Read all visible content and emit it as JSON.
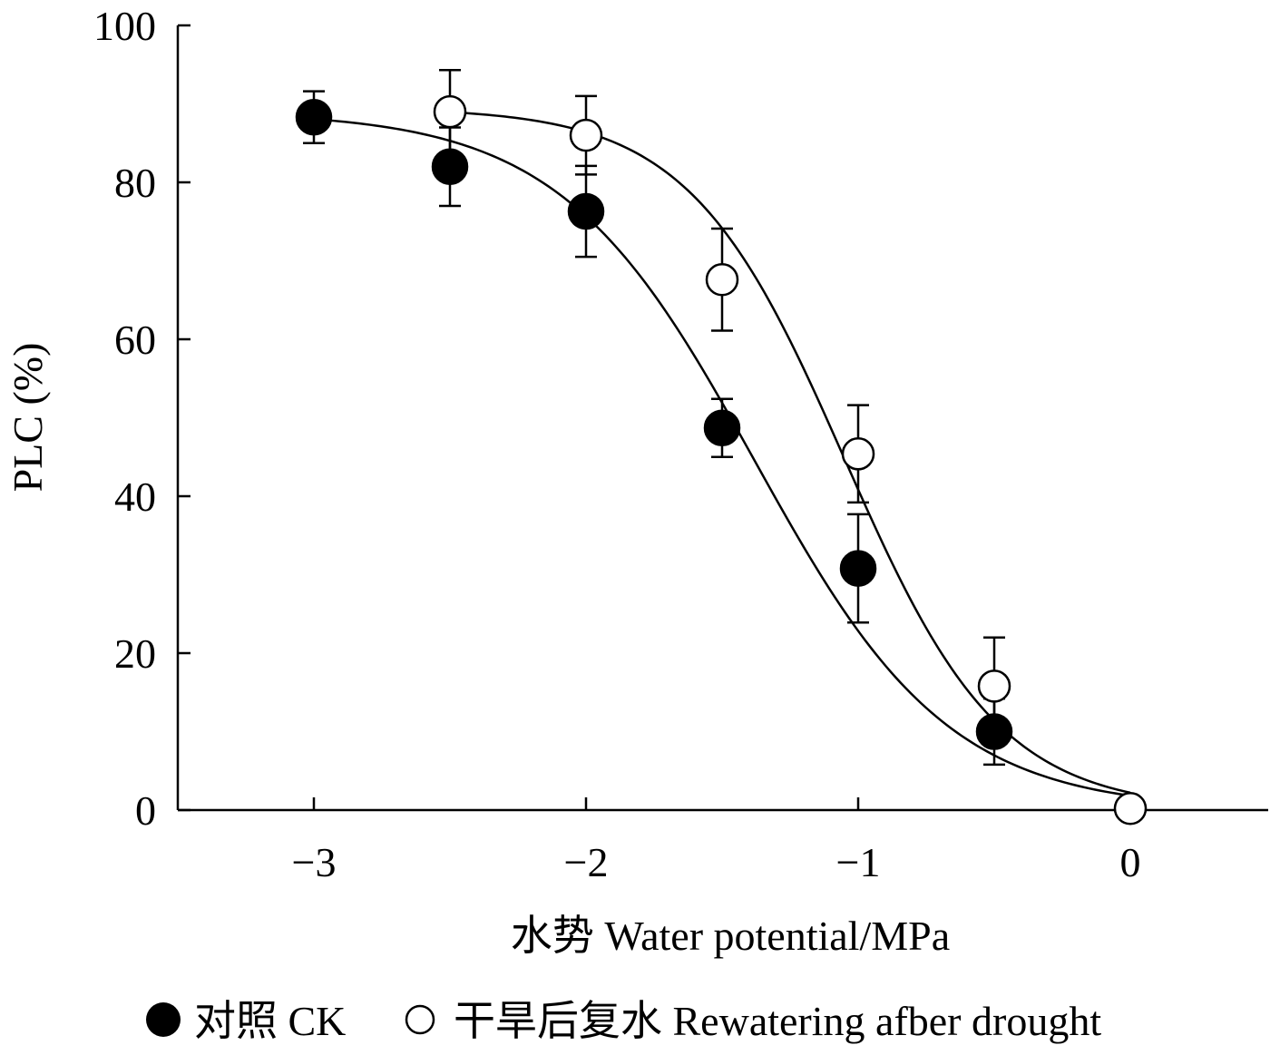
{
  "chart_data": {
    "type": "scatter",
    "title": "",
    "xlabel": "水势 Water potential/MPa",
    "ylabel": "PLC (%)",
    "xlim": [
      -3.5,
      0.5
    ],
    "ylim": [
      0,
      100
    ],
    "x_ticks": [
      -3,
      -2,
      -1,
      0
    ],
    "x_tick_labels": [
      "−3",
      "−2",
      "−1",
      "0"
    ],
    "y_ticks": [
      0,
      20,
      40,
      60,
      80,
      100
    ],
    "y_tick_labels": [
      "0",
      "20",
      "40",
      "60",
      "80",
      "100"
    ],
    "grid": false,
    "legend_position": "bottom",
    "series": [
      {
        "name": "对照 CK",
        "marker": "filled-circle",
        "color": "#000000",
        "points": [
          {
            "x": -3.0,
            "y": 88.3,
            "err": 3.3
          },
          {
            "x": -2.5,
            "y": 82.0,
            "err": 5.0
          },
          {
            "x": -2.0,
            "y": 76.3,
            "err": 5.8
          },
          {
            "x": -1.5,
            "y": 48.7,
            "err": 3.7
          },
          {
            "x": -1.0,
            "y": 30.8,
            "err": 6.9
          },
          {
            "x": -0.5,
            "y": 10.0,
            "err": 4.2
          }
        ],
        "fit": {
          "a": 89.0,
          "b": 2.8,
          "p50": -1.38,
          "x_start": -3.0,
          "x_end": 0.0
        }
      },
      {
        "name": "干旱后复水 Rewatering afber drought",
        "marker": "open-circle",
        "color": "#000000",
        "points": [
          {
            "x": -2.5,
            "y": 89.0,
            "err": 5.3
          },
          {
            "x": -2.0,
            "y": 86.0,
            "err": 5.0
          },
          {
            "x": -1.5,
            "y": 67.6,
            "err": 6.5
          },
          {
            "x": -1.0,
            "y": 45.4,
            "err": 6.2
          },
          {
            "x": -0.5,
            "y": 15.8,
            "err": 6.2
          },
          {
            "x": 0.0,
            "y": 0.2,
            "err": 0
          }
        ],
        "fit": {
          "a": 89.5,
          "b": 3.5,
          "p50": -1.05,
          "x_start": -2.5,
          "x_end": 0.0
        }
      }
    ]
  }
}
